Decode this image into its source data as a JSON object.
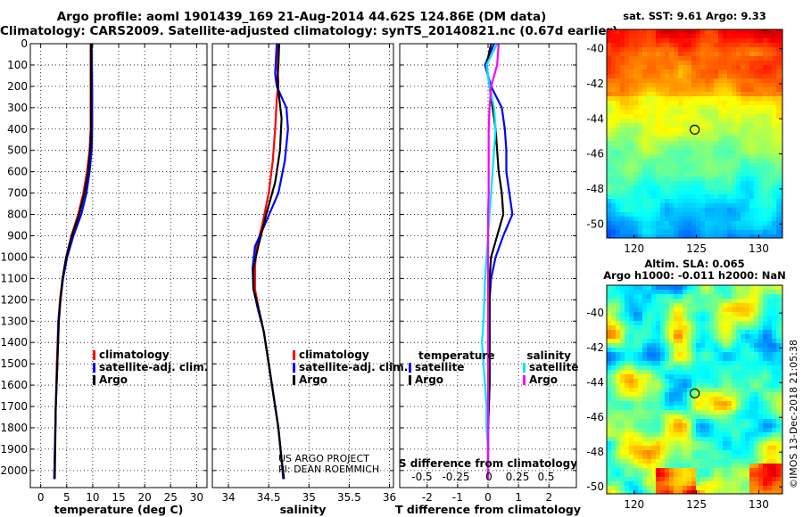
{
  "title_line1": "Argo profile: aoml 1901439_169 21-Aug-2014 44.62S 124.86E (DM data)",
  "title_line2": "Climatology: CARS2009. Satellite-adjusted climatology: synTS_20140821.nc (0.67d earlier)",
  "colors": {
    "climatology": "#ff0000",
    "satellite": "#0000ff",
    "argo": "#000000",
    "sal_satellite": "#00e5ff",
    "sal_argo": "#ff00ff"
  },
  "chart_data": [
    {
      "type": "line",
      "xlabel": "temperature (deg C)",
      "xticks": [
        0,
        5,
        10,
        15,
        20,
        25,
        30
      ],
      "xlim": [
        -2,
        32
      ],
      "ylim": [
        2080,
        0
      ],
      "yticks": [
        0,
        100,
        200,
        300,
        400,
        500,
        600,
        700,
        800,
        900,
        1000,
        1100,
        1200,
        1300,
        1400,
        1500,
        1600,
        1700,
        1800,
        1900,
        2000
      ],
      "legend": [
        "climatology",
        "satellite-adj. clim.",
        "Argo"
      ],
      "grid": true,
      "series": [
        {
          "name": "climatology",
          "points": [
            [
              9.6,
              0
            ],
            [
              9.6,
              200
            ],
            [
              9.6,
              400
            ],
            [
              9.4,
              500
            ],
            [
              8.9,
              600
            ],
            [
              8.2,
              700
            ],
            [
              7.2,
              800
            ],
            [
              5.9,
              900
            ],
            [
              4.9,
              1000
            ],
            [
              4.2,
              1100
            ],
            [
              3.7,
              1200
            ],
            [
              3.4,
              1300
            ],
            [
              3.1,
              1500
            ],
            [
              2.9,
              1700
            ],
            [
              2.6,
              2040
            ]
          ]
        },
        {
          "name": "satellite-adj. clim.",
          "points": [
            [
              9.8,
              0
            ],
            [
              9.9,
              200
            ],
            [
              9.9,
              400
            ],
            [
              9.8,
              500
            ],
            [
              9.4,
              600
            ],
            [
              8.8,
              700
            ],
            [
              7.8,
              800
            ],
            [
              6.3,
              900
            ],
            [
              5.1,
              1000
            ],
            [
              4.3,
              1100
            ],
            [
              3.8,
              1200
            ],
            [
              3.4,
              1300
            ],
            [
              3.2,
              1500
            ],
            [
              2.9,
              1700
            ],
            [
              2.6,
              2040
            ]
          ]
        },
        {
          "name": "Argo",
          "points": [
            [
              9.7,
              0
            ],
            [
              9.7,
              200
            ],
            [
              9.7,
              400
            ],
            [
              9.5,
              500
            ],
            [
              9.1,
              600
            ],
            [
              8.4,
              700
            ],
            [
              7.4,
              800
            ],
            [
              6.0,
              900
            ],
            [
              4.9,
              1000
            ],
            [
              4.2,
              1100
            ],
            [
              3.8,
              1200
            ],
            [
              3.5,
              1300
            ],
            [
              3.2,
              1500
            ],
            [
              2.9,
              1700
            ],
            [
              2.7,
              2040
            ]
          ]
        }
      ]
    },
    {
      "type": "line",
      "xlabel": "salinity",
      "xticks": [
        34,
        34.5,
        35,
        35.5,
        36
      ],
      "xlim": [
        33.8,
        36.05
      ],
      "ylim": [
        2080,
        0
      ],
      "legend": [
        "climatology",
        "satellite-adj. clim.",
        "Argo"
      ],
      "grid": true,
      "annotation": [
        "US ARGO PROJECT",
        "PI: DEAN ROEMMICH"
      ],
      "series": [
        {
          "name": "climatology",
          "points": [
            [
              34.62,
              0
            ],
            [
              34.61,
              120
            ],
            [
              34.62,
              180
            ],
            [
              34.6,
              260
            ],
            [
              34.58,
              400
            ],
            [
              34.55,
              550
            ],
            [
              34.5,
              700
            ],
            [
              34.42,
              850
            ],
            [
              34.35,
              950
            ],
            [
              34.33,
              1050
            ],
            [
              34.33,
              1150
            ],
            [
              34.38,
              1250
            ],
            [
              34.44,
              1350
            ],
            [
              34.5,
              1500
            ],
            [
              34.56,
              1650
            ],
            [
              34.62,
              1800
            ],
            [
              34.66,
              1950
            ],
            [
              34.69,
              2040
            ]
          ]
        },
        {
          "name": "satellite-adj. clim.",
          "points": [
            [
              34.6,
              0
            ],
            [
              34.58,
              140
            ],
            [
              34.6,
              200
            ],
            [
              34.72,
              300
            ],
            [
              34.74,
              400
            ],
            [
              34.7,
              550
            ],
            [
              34.62,
              700
            ],
            [
              34.45,
              850
            ],
            [
              34.33,
              950
            ],
            [
              34.3,
              1050
            ],
            [
              34.31,
              1150
            ],
            [
              34.37,
              1250
            ],
            [
              34.44,
              1350
            ],
            [
              34.5,
              1500
            ],
            [
              34.56,
              1650
            ],
            [
              34.62,
              1800
            ],
            [
              34.66,
              1950
            ],
            [
              34.68,
              2040
            ]
          ]
        },
        {
          "name": "Argo",
          "points": [
            [
              34.63,
              0
            ],
            [
              34.62,
              100
            ],
            [
              34.61,
              160
            ],
            [
              34.62,
              220
            ],
            [
              34.66,
              350
            ],
            [
              34.64,
              500
            ],
            [
              34.58,
              650
            ],
            [
              34.47,
              800
            ],
            [
              34.37,
              950
            ],
            [
              34.31,
              1050
            ],
            [
              34.31,
              1150
            ],
            [
              34.38,
              1250
            ],
            [
              34.44,
              1350
            ],
            [
              34.5,
              1500
            ],
            [
              34.56,
              1650
            ],
            [
              34.62,
              1800
            ],
            [
              34.66,
              1950
            ],
            [
              34.69,
              2040
            ]
          ]
        }
      ]
    },
    {
      "type": "line",
      "xlabel": "T difference from climatology",
      "xticks": [
        -2,
        -1,
        0,
        1,
        2
      ],
      "xlim": [
        -2.9,
        2.9
      ],
      "top_axis_label": "S difference from climatology",
      "top_axis_ticks": [
        "-0.5",
        "-0.25",
        "0",
        "0.25",
        "0.5"
      ],
      "ylim": [
        2080,
        0
      ],
      "legend": {
        "temperature_title": "temperature",
        "salinity_title": "salinity",
        "temperature": [
          "satellite",
          "Argo"
        ],
        "salinity": [
          "satellite",
          "Argo"
        ]
      },
      "grid": true,
      "series": [
        {
          "name": "satellite",
          "points": [
            [
              0.2,
              0
            ],
            [
              -0.1,
              100
            ],
            [
              0.1,
              200
            ],
            [
              0.45,
              300
            ],
            [
              0.55,
              400
            ],
            [
              0.6,
              500
            ],
            [
              0.6,
              600
            ],
            [
              0.7,
              700
            ],
            [
              0.8,
              800
            ],
            [
              0.5,
              900
            ],
            [
              0.25,
              1000
            ],
            [
              0.1,
              1100
            ],
            [
              0.05,
              1200
            ],
            [
              0.05,
              1400
            ],
            [
              0.05,
              1600
            ],
            [
              0.0,
              1800
            ],
            [
              0.0,
              2040
            ]
          ]
        },
        {
          "name": "Argo",
          "points": [
            [
              0.1,
              0
            ],
            [
              -0.05,
              100
            ],
            [
              0.05,
              200
            ],
            [
              0.15,
              300
            ],
            [
              0.25,
              400
            ],
            [
              0.3,
              500
            ],
            [
              0.35,
              600
            ],
            [
              0.45,
              700
            ],
            [
              0.5,
              800
            ],
            [
              0.3,
              900
            ],
            [
              0.1,
              1000
            ],
            [
              0.05,
              1100
            ],
            [
              0.05,
              1200
            ],
            [
              0.05,
              1400
            ],
            [
              0.05,
              1600
            ],
            [
              0.0,
              1800
            ],
            [
              0.0,
              2040
            ]
          ]
        },
        {
          "name": "satellite",
          "points": [
            [
              0.3,
              0
            ],
            [
              -0.05,
              100
            ],
            [
              0.05,
              200
            ],
            [
              0.2,
              300
            ],
            [
              0.25,
              400
            ],
            [
              0.2,
              500
            ],
            [
              0.15,
              600
            ],
            [
              0.1,
              700
            ],
            [
              0.05,
              800
            ],
            [
              0.0,
              900
            ],
            [
              -0.05,
              1000
            ],
            [
              -0.1,
              1100
            ],
            [
              -0.12,
              1200
            ],
            [
              -0.15,
              1300
            ],
            [
              -0.2,
              1400
            ],
            [
              -0.15,
              1500
            ],
            [
              -0.1,
              1600
            ],
            [
              -0.05,
              1700
            ],
            [
              -0.05,
              1800
            ],
            [
              0.0,
              1900
            ],
            [
              0.0,
              2040
            ]
          ]
        },
        {
          "name": "Argo",
          "points": [
            [
              0.35,
              0
            ],
            [
              0.3,
              100
            ],
            [
              0.1,
              200
            ],
            [
              0.05,
              300
            ],
            [
              0.02,
              400
            ],
            [
              0.02,
              500
            ],
            [
              0.02,
              600
            ],
            [
              0.02,
              700
            ],
            [
              0.0,
              800
            ],
            [
              0.0,
              1000
            ],
            [
              0.0,
              1200
            ],
            [
              0.0,
              1400
            ],
            [
              0.0,
              1600
            ],
            [
              0.0,
              1800
            ],
            [
              0.0,
              2040
            ]
          ]
        }
      ]
    },
    {
      "type": "heatmap",
      "title": "sat. SST: 9.61 Argo: 9.33",
      "xticks": [
        120,
        125,
        130
      ],
      "yticks": [
        -40,
        -42,
        -44,
        -46,
        -48,
        -50
      ],
      "xlim": [
        117.8,
        131.9
      ],
      "ylim": [
        -50.8,
        -38.9
      ],
      "marker": [
        124.86,
        -44.62
      ]
    },
    {
      "type": "heatmap",
      "title_line1": "Altim. SLA: 0.065",
      "title_line2": "Argo h1000: -0.011 h2000: NaN",
      "xticks": [
        120,
        125,
        130
      ],
      "yticks": [
        -40,
        -42,
        -44,
        -46,
        -48,
        -50
      ],
      "xlim": [
        117.8,
        131.9
      ],
      "ylim": [
        -50.4,
        -38.4
      ],
      "marker": [
        124.86,
        -44.62
      ]
    }
  ],
  "credit": "©IMOS 13-Dec-2018 21:05:38"
}
